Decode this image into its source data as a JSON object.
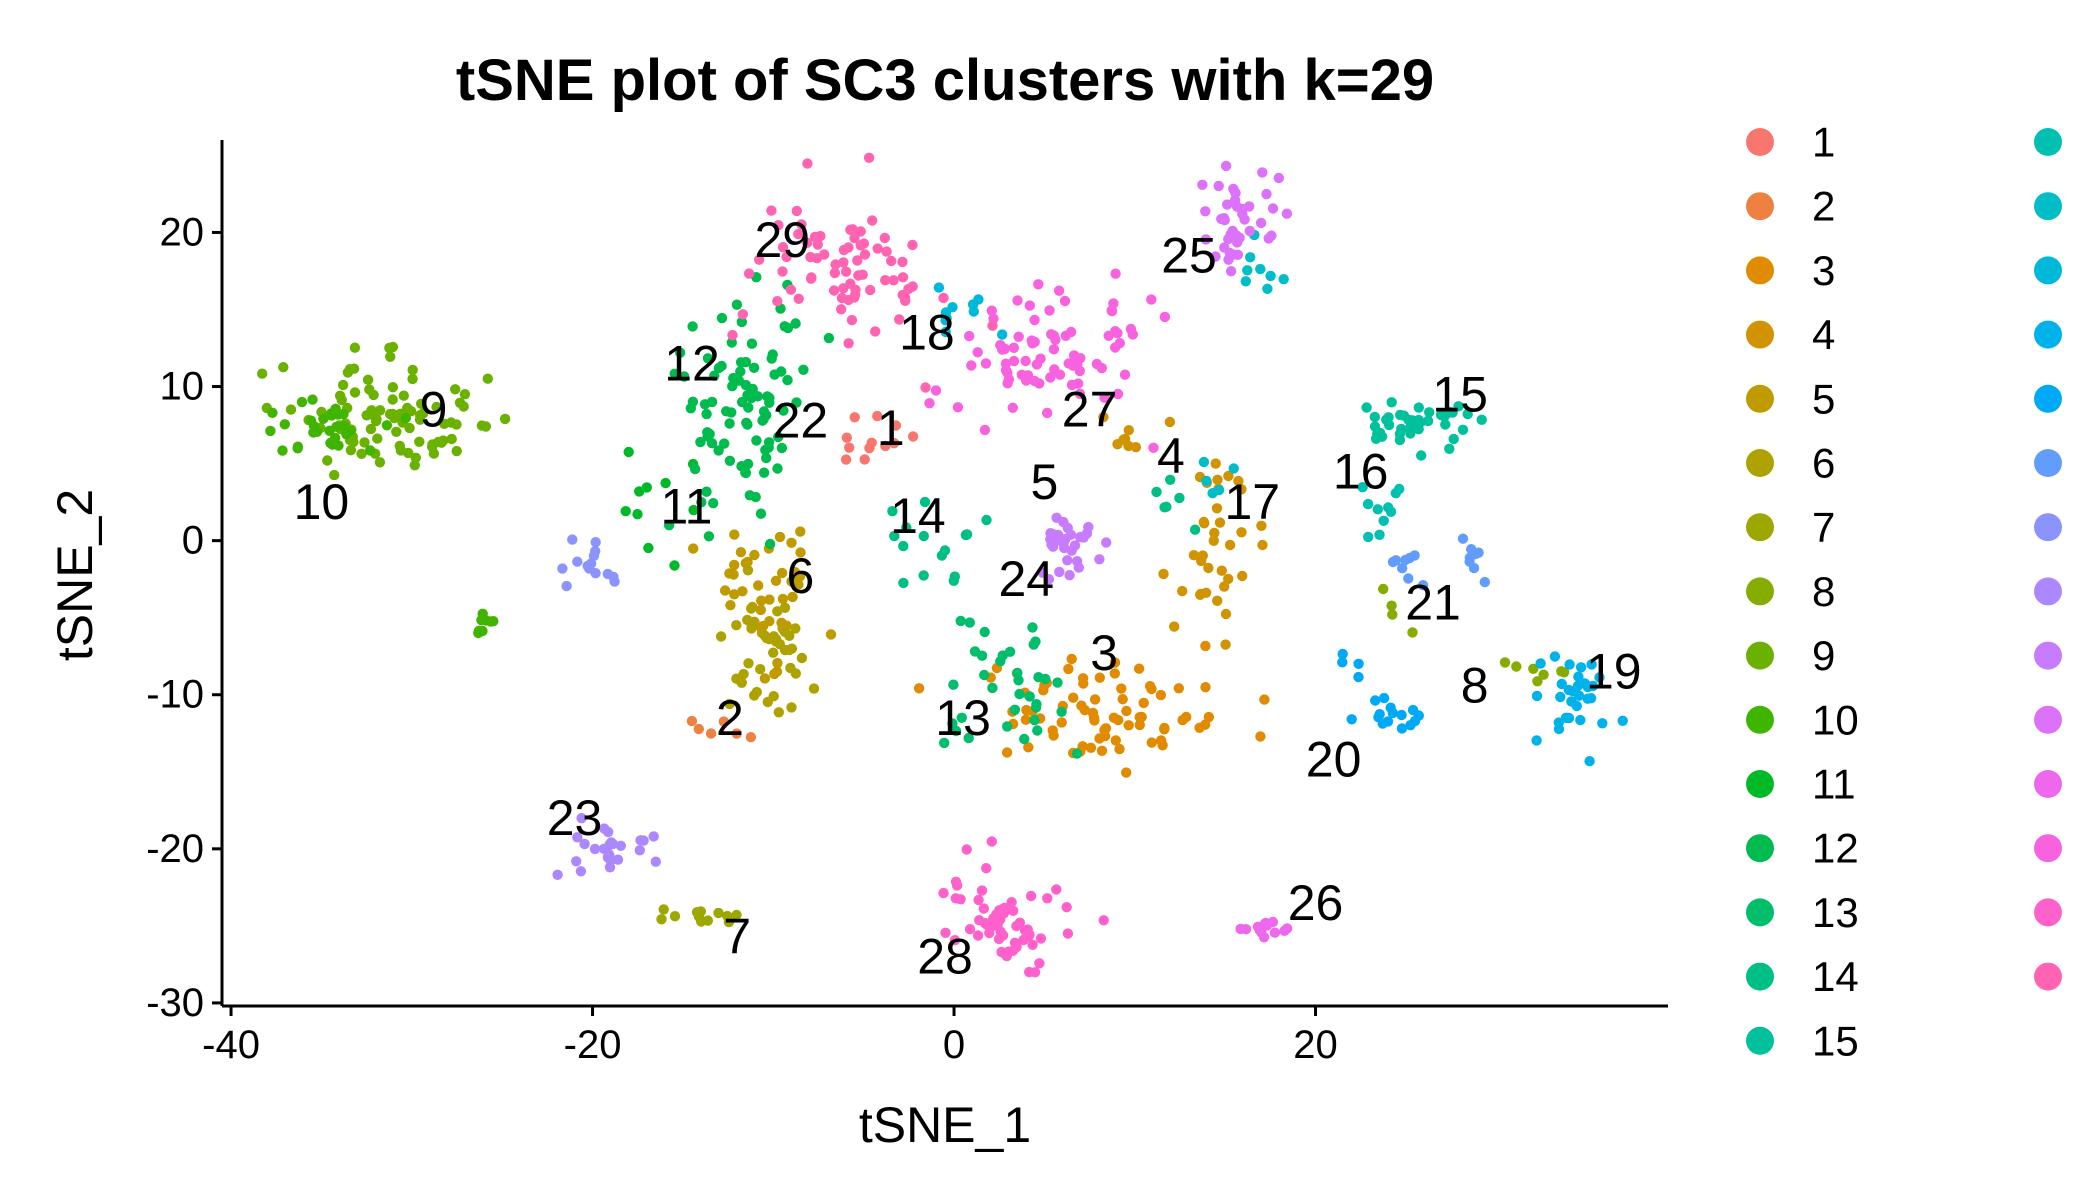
{
  "chart_data": {
    "type": "scatter",
    "title": "tSNE plot of SC3 clusters with k=29",
    "xlabel": "tSNE_1",
    "ylabel": "tSNE_2",
    "xlim": [
      -40.5,
      39.5
    ],
    "ylim": [
      -30.2,
      26
    ],
    "x_ticks": [
      -40,
      -20,
      0,
      20
    ],
    "y_ticks": [
      -30,
      -20,
      -10,
      0,
      10,
      20
    ],
    "x_tick_labels": [
      "-40",
      "-20",
      "0",
      "20"
    ],
    "y_tick_labels": [
      "-30",
      "-20",
      "-10",
      "0",
      "10",
      "20"
    ],
    "grid": false,
    "legend_position": "right",
    "series": [
      {
        "name": "1",
        "color": "#F8766D",
        "label": {
          "text": "1",
          "x": -3.5,
          "y": 7.3
        },
        "clusters": [
          {
            "cx": -4.5,
            "cy": 6.5,
            "sx": 1.2,
            "sy": 1.2,
            "n": 12
          }
        ]
      },
      {
        "name": "2",
        "color": "#EE8042",
        "label": {
          "text": "2",
          "x": -12.4,
          "y": -11.5
        },
        "clusters": [
          {
            "cx": -13.5,
            "cy": -12,
            "sx": 1.2,
            "sy": 0.6,
            "n": 6
          }
        ]
      },
      {
        "name": "3",
        "color": "#E08B00",
        "label": {
          "text": "3",
          "x": 8.3,
          "y": -7.3
        },
        "clusters": [
          {
            "cx": 8,
            "cy": -11.2,
            "sx": 3.8,
            "sy": 1.8,
            "n": 75
          }
        ]
      },
      {
        "name": "4",
        "color": "#D19300",
        "label": {
          "text": "4",
          "x": 12,
          "y": 5.5
        },
        "clusters": [
          {
            "cx": 14.5,
            "cy": 0,
            "sx": 1.2,
            "sy": 2.6,
            "n": 35
          },
          {
            "cx": 9,
            "cy": 6.8,
            "sx": 1,
            "sy": 0.7,
            "n": 8
          }
        ]
      },
      {
        "name": "5",
        "color": "#C09B00",
        "label": {
          "text": "5",
          "x": 5,
          "y": 3.8
        },
        "clusters": [
          {
            "cx": -10.5,
            "cy": -3.5,
            "sx": 1.6,
            "sy": 2.2,
            "n": 45
          }
        ]
      },
      {
        "name": "6",
        "color": "#AEA200",
        "label": {
          "text": "6",
          "x": -8.5,
          "y": -2.3
        },
        "clusters": [
          {
            "cx": -10.5,
            "cy": -7,
            "sx": 1.4,
            "sy": 2.2,
            "n": 40
          }
        ]
      },
      {
        "name": "7",
        "color": "#9CA700",
        "label": {
          "text": "7",
          "x": -12,
          "y": -25.7
        },
        "clusters": [
          {
            "cx": -13.8,
            "cy": -24.3,
            "sx": 1.1,
            "sy": 0.35,
            "n": 12
          }
        ]
      },
      {
        "name": "8",
        "color": "#86AC00",
        "label": {
          "text": "8",
          "x": 28.8,
          "y": -9.4
        },
        "clusters": [
          {
            "cx": 32,
            "cy": -8.5,
            "sx": 1.1,
            "sy": 0.5,
            "n": 7
          },
          {
            "cx": 24.5,
            "cy": -4.8,
            "sx": 0.7,
            "sy": 0.6,
            "n": 4
          }
        ]
      },
      {
        "name": "9",
        "color": "#6BB100",
        "label": {
          "text": "9",
          "x": -28.8,
          "y": 8.5
        },
        "clusters": [
          {
            "cx": -31.5,
            "cy": 7.8,
            "sx": 2.6,
            "sy": 1.8,
            "n": 90
          }
        ]
      },
      {
        "name": "10",
        "color": "#3FB500",
        "label": {
          "text": "10",
          "x": -35,
          "y": 2.5
        },
        "clusters": [
          {
            "cx": -35,
            "cy": 7.2,
            "sx": 1.6,
            "sy": 1.4,
            "n": 30
          },
          {
            "cx": -26,
            "cy": -5.2,
            "sx": 0.5,
            "sy": 0.5,
            "n": 8
          }
        ]
      },
      {
        "name": "11",
        "color": "#00B929",
        "label": {
          "text": "11",
          "x": -14.8,
          "y": 2.2
        },
        "clusters": [
          {
            "cx": -17,
            "cy": 2,
            "sx": 1.5,
            "sy": 1.8,
            "n": 10
          }
        ]
      },
      {
        "name": "12",
        "color": "#00BB4E",
        "label": {
          "text": "12",
          "x": -14.5,
          "y": 11.5
        },
        "clusters": [
          {
            "cx": -11.5,
            "cy": 8.5,
            "sx": 2,
            "sy": 3.6,
            "n": 90
          }
        ]
      },
      {
        "name": "13",
        "color": "#00BE6C",
        "label": {
          "text": "13",
          "x": 0.5,
          "y": -11.5
        },
        "clusters": [
          {
            "cx": 3,
            "cy": -9,
            "sx": 1.6,
            "sy": 2.4,
            "n": 35
          }
        ]
      },
      {
        "name": "14",
        "color": "#00BF85",
        "label": {
          "text": "14",
          "x": -2,
          "y": 1.6
        },
        "clusters": [
          {
            "cx": -1,
            "cy": 0.5,
            "sx": 2.2,
            "sy": 1.8,
            "n": 15
          },
          {
            "cx": 12,
            "cy": 2.5,
            "sx": 1,
            "sy": 1,
            "n": 6
          }
        ]
      },
      {
        "name": "15",
        "color": "#00C19C",
        "label": {
          "text": "15",
          "x": 28,
          "y": 9.5
        },
        "clusters": [
          {
            "cx": 25,
            "cy": 7.7,
            "sx": 1.8,
            "sy": 0.9,
            "n": 40
          }
        ]
      },
      {
        "name": "16",
        "color": "#00C0B2",
        "label": {
          "text": "16",
          "x": 22.5,
          "y": 4.5
        },
        "clusters": [
          {
            "cx": 23.5,
            "cy": 1.8,
            "sx": 0.6,
            "sy": 1.3,
            "n": 10
          }
        ]
      },
      {
        "name": "17",
        "color": "#00BDC7",
        "label": {
          "text": "17",
          "x": 16.5,
          "y": 2.5
        },
        "clusters": [
          {
            "cx": 14.5,
            "cy": 4,
            "sx": 0.6,
            "sy": 0.6,
            "n": 5
          },
          {
            "cx": 16.5,
            "cy": 17.5,
            "sx": 1.2,
            "sy": 1.2,
            "n": 8
          }
        ]
      },
      {
        "name": "18",
        "color": "#00B8DA",
        "label": {
          "text": "18",
          "x": -1.5,
          "y": 13.5
        },
        "clusters": [
          {
            "cx": 0.5,
            "cy": 14.5,
            "sx": 1.4,
            "sy": 1.2,
            "n": 10
          }
        ]
      },
      {
        "name": "19",
        "color": "#00B2EA",
        "label": {
          "text": "19",
          "x": 36.5,
          "y": -8.5
        },
        "clusters": [
          {
            "cx": 34.5,
            "cy": -10,
            "sx": 1,
            "sy": 1.5,
            "n": 30
          }
        ]
      },
      {
        "name": "20",
        "color": "#00A9F8",
        "label": {
          "text": "20",
          "x": 21,
          "y": -14.2
        },
        "clusters": [
          {
            "cx": 24,
            "cy": -11.5,
            "sx": 1,
            "sy": 0.6,
            "n": 15
          },
          {
            "cx": 22,
            "cy": -8,
            "sx": 0.8,
            "sy": 0.8,
            "n": 4
          }
        ]
      },
      {
        "name": "21",
        "color": "#619CFF",
        "label": {
          "text": "21",
          "x": 26.5,
          "y": -4
        },
        "clusters": [
          {
            "cx": 25,
            "cy": -2,
            "sx": 0.6,
            "sy": 0.8,
            "n": 8
          },
          {
            "cx": 28.5,
            "cy": -1.2,
            "sx": 0.7,
            "sy": 0.6,
            "n": 8
          }
        ]
      },
      {
        "name": "22",
        "color": "#8B93FF",
        "label": {
          "text": "22",
          "x": -8.5,
          "y": 7.8
        },
        "clusters": [
          {
            "cx": -20,
            "cy": -1.5,
            "sx": 0.8,
            "sy": 0.6,
            "n": 14
          }
        ]
      },
      {
        "name": "23",
        "color": "#AC88FF",
        "label": {
          "text": "23",
          "x": -21,
          "y": -18
        },
        "clusters": [
          {
            "cx": -18.5,
            "cy": -19.8,
            "sx": 1.6,
            "sy": 0.8,
            "n": 25
          }
        ]
      },
      {
        "name": "24",
        "color": "#C77CFF",
        "label": {
          "text": "24",
          "x": 4,
          "y": -2.5
        },
        "clusters": [
          {
            "cx": 6.5,
            "cy": -0.5,
            "sx": 0.9,
            "sy": 1.2,
            "n": 30
          }
        ]
      },
      {
        "name": "25",
        "color": "#DC71FA",
        "label": {
          "text": "25",
          "x": 13,
          "y": 18.5
        },
        "clusters": [
          {
            "cx": 15.5,
            "cy": 20.5,
            "sx": 1,
            "sy": 1.5,
            "n": 40
          }
        ]
      },
      {
        "name": "26",
        "color": "#ED68ED",
        "label": {
          "text": "26",
          "x": 20,
          "y": -23.5
        },
        "clusters": [
          {
            "cx": 17,
            "cy": -25.2,
            "sx": 0.8,
            "sy": 0.3,
            "n": 15
          }
        ]
      },
      {
        "name": "27",
        "color": "#F862DE",
        "label": {
          "text": "27",
          "x": 7.5,
          "y": 8.5
        },
        "clusters": [
          {
            "cx": 5,
            "cy": 12,
            "sx": 2.6,
            "sy": 2.6,
            "n": 80
          }
        ]
      },
      {
        "name": "28",
        "color": "#FF61CC",
        "label": {
          "text": "28",
          "x": -0.5,
          "y": -27
        },
        "clusters": [
          {
            "cx": 2.5,
            "cy": -24.5,
            "sx": 1.8,
            "sy": 1.6,
            "n": 60
          }
        ]
      },
      {
        "name": "29",
        "color": "#FF64B3",
        "label": {
          "text": "29",
          "x": -9.5,
          "y": 19.5
        },
        "clusters": [
          {
            "cx": -6,
            "cy": 17.5,
            "sx": 2.6,
            "sy": 2.6,
            "n": 75
          }
        ]
      }
    ]
  }
}
